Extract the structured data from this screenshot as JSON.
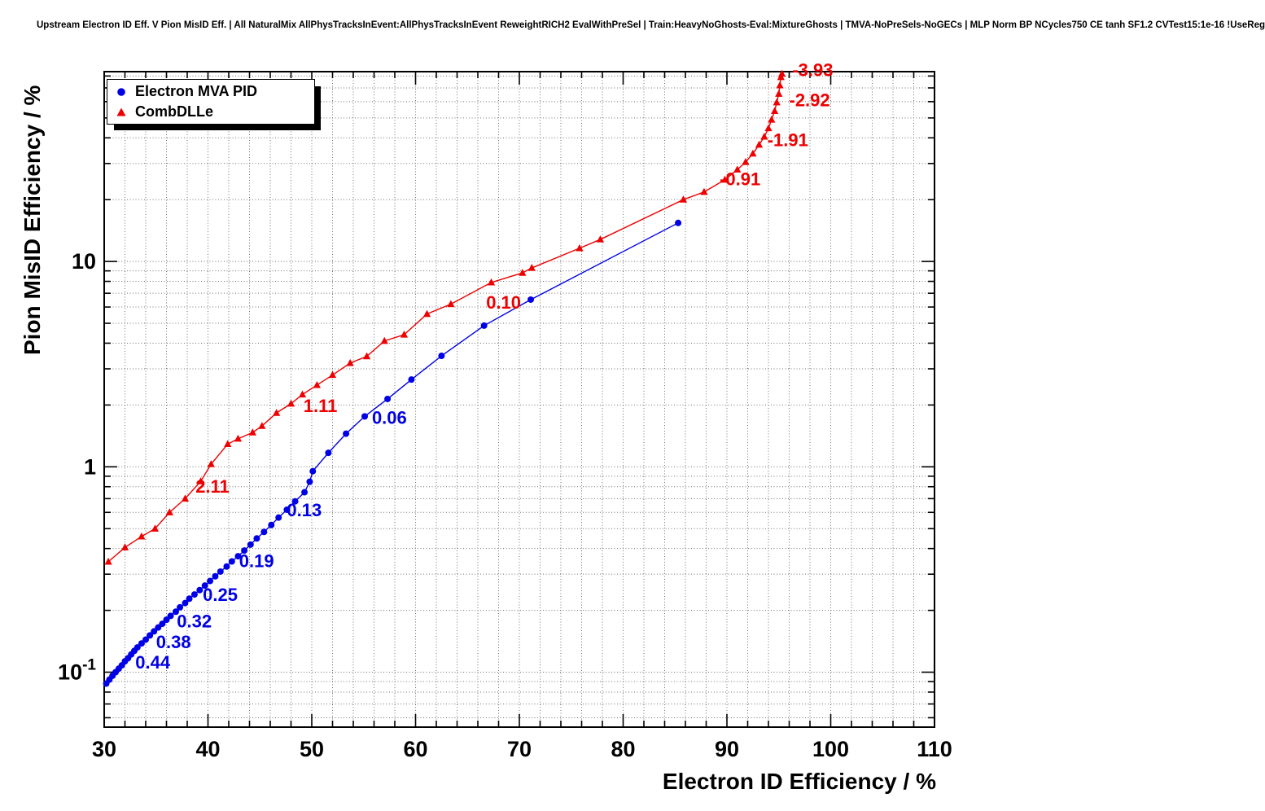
{
  "title": "Upstream Electron ID Eff. V Pion MisID Eff. | All NaturalMix AllPhysTracksInEvent:AllPhysTracksInEvent ReweightRICH2 EvalWithPreSel | Train:HeavyNoGhosts-Eval:MixtureGhosts | TMVA-NoPreSels-NoGECs | MLP Norm BP NCycles750 CE tanh SF1.2 CVTest15:1e-16 !UseReg",
  "chart_data": {
    "type": "scatter",
    "xlabel": "Electron ID Efficiency / %",
    "ylabel": "Pion MisID Efficiency / %",
    "xlim": [
      30,
      110
    ],
    "ylim": [
      0.054,
      84
    ],
    "ylog": true,
    "grid": true,
    "legend_position": "top-left",
    "x_major_ticks": [
      30,
      40,
      50,
      60,
      70,
      80,
      90,
      100,
      110
    ],
    "x_minor_step": 2,
    "y_major_ticks": [
      {
        "value": 0.1,
        "label": "10",
        "sup": "-1"
      },
      {
        "value": 1,
        "label": "1",
        "sup": ""
      },
      {
        "value": 10,
        "label": "10",
        "sup": ""
      }
    ],
    "series": [
      {
        "name": "Electron MVA PID",
        "color": "#0000e6",
        "marker": "circle",
        "points": [
          [
            30.2,
            0.088
          ],
          [
            30.5,
            0.092
          ],
          [
            30.8,
            0.096
          ],
          [
            31.1,
            0.1
          ],
          [
            31.4,
            0.104
          ],
          [
            31.7,
            0.108
          ],
          [
            32.0,
            0.113
          ],
          [
            32.3,
            0.117
          ],
          [
            32.6,
            0.122
          ],
          [
            32.9,
            0.127
          ],
          [
            33.2,
            0.132
          ],
          [
            33.6,
            0.138
          ],
          [
            34.0,
            0.144
          ],
          [
            34.4,
            0.151
          ],
          [
            34.8,
            0.158
          ],
          [
            35.2,
            0.165
          ],
          [
            35.6,
            0.172
          ],
          [
            36.0,
            0.18
          ],
          [
            36.4,
            0.188
          ],
          [
            36.9,
            0.197
          ],
          [
            37.3,
            0.207
          ],
          [
            37.8,
            0.217
          ],
          [
            38.2,
            0.228
          ],
          [
            38.7,
            0.239
          ],
          [
            39.2,
            0.251
          ],
          [
            39.7,
            0.264
          ],
          [
            40.2,
            0.278
          ],
          [
            40.7,
            0.293
          ],
          [
            41.2,
            0.309
          ],
          [
            41.8,
            0.327
          ],
          [
            42.3,
            0.346
          ],
          [
            42.9,
            0.367
          ],
          [
            43.5,
            0.391
          ],
          [
            44.1,
            0.418
          ],
          [
            44.7,
            0.448
          ],
          [
            45.4,
            0.482
          ],
          [
            46.1,
            0.521
          ],
          [
            46.8,
            0.566
          ],
          [
            47.6,
            0.618
          ],
          [
            48.4,
            0.679
          ],
          [
            49.3,
            0.752
          ],
          [
            49.8,
            0.846
          ],
          [
            50.1,
            0.952
          ],
          [
            51.6,
            1.17
          ],
          [
            53.3,
            1.45
          ],
          [
            55.1,
            1.76
          ],
          [
            57.3,
            2.14
          ],
          [
            59.6,
            2.66
          ],
          [
            62.5,
            3.47
          ],
          [
            66.6,
            4.87
          ],
          [
            71.1,
            6.52
          ],
          [
            85.3,
            15.4
          ]
        ]
      },
      {
        "name": "CombDLLe",
        "color": "#ee0000",
        "marker": "triangle",
        "points": [
          [
            30.4,
            0.345
          ],
          [
            32.0,
            0.405
          ],
          [
            33.6,
            0.458
          ],
          [
            34.9,
            0.5
          ],
          [
            36.3,
            0.6
          ],
          [
            37.8,
            0.7
          ],
          [
            39.3,
            0.85
          ],
          [
            40.3,
            1.03
          ],
          [
            41.9,
            1.29
          ],
          [
            42.9,
            1.37
          ],
          [
            44.3,
            1.47
          ],
          [
            45.2,
            1.58
          ],
          [
            46.6,
            1.83
          ],
          [
            48.0,
            2.03
          ],
          [
            49.1,
            2.25
          ],
          [
            50.5,
            2.5
          ],
          [
            52.0,
            2.8
          ],
          [
            53.7,
            3.2
          ],
          [
            55.3,
            3.45
          ],
          [
            57.0,
            4.1
          ],
          [
            58.9,
            4.4
          ],
          [
            61.1,
            5.55
          ],
          [
            63.4,
            6.2
          ],
          [
            67.3,
            7.9
          ],
          [
            70.3,
            8.8
          ],
          [
            71.2,
            9.3
          ],
          [
            75.8,
            11.6
          ],
          [
            77.8,
            12.8
          ],
          [
            85.8,
            20.0
          ],
          [
            87.8,
            21.8
          ],
          [
            89.8,
            25.0
          ],
          [
            91.0,
            28.0
          ],
          [
            91.8,
            30.5
          ],
          [
            92.5,
            33.5
          ],
          [
            93.1,
            37.0
          ],
          [
            93.6,
            40.5
          ],
          [
            94.0,
            44.5
          ],
          [
            94.3,
            49.0
          ],
          [
            94.6,
            54.0
          ],
          [
            94.8,
            59.5
          ],
          [
            95.0,
            65.5
          ],
          [
            95.1,
            72.0
          ],
          [
            95.2,
            79.0
          ],
          [
            95.3,
            82.0
          ]
        ]
      }
    ],
    "annotations": [
      {
        "text": "0.44",
        "x": 33.0,
        "y": 0.104,
        "color": "#0000e6"
      },
      {
        "text": "0.38",
        "x": 35.0,
        "y": 0.131,
        "color": "#0000e6"
      },
      {
        "text": "0.32",
        "x": 37.0,
        "y": 0.165,
        "color": "#0000e6"
      },
      {
        "text": "0.25",
        "x": 39.5,
        "y": 0.222,
        "color": "#0000e6"
      },
      {
        "text": "0.19",
        "x": 43.0,
        "y": 0.325,
        "color": "#0000e6"
      },
      {
        "text": "0.13",
        "x": 47.6,
        "y": 0.575,
        "color": "#0000e6"
      },
      {
        "text": "0.06",
        "x": 55.8,
        "y": 1.62,
        "color": "#0000e6"
      },
      {
        "text": "2.11",
        "x": 38.8,
        "y": 0.75,
        "color": "#ee0000"
      },
      {
        "text": "1.11",
        "x": 49.2,
        "y": 1.85,
        "color": "#ee0000"
      },
      {
        "text": "0.10",
        "x": 66.8,
        "y": 5.9,
        "color": "#ee0000"
      },
      {
        "text": "-0.91",
        "x": 89.3,
        "y": 23.5,
        "color": "#ee0000"
      },
      {
        "text": "-1.91",
        "x": 93.9,
        "y": 36.5,
        "color": "#ee0000"
      },
      {
        "text": "-2.92",
        "x": 96.0,
        "y": 57.0,
        "color": "#ee0000"
      },
      {
        "text": "-3.93",
        "x": 96.3,
        "y": 80.0,
        "color": "#ee0000"
      }
    ]
  }
}
